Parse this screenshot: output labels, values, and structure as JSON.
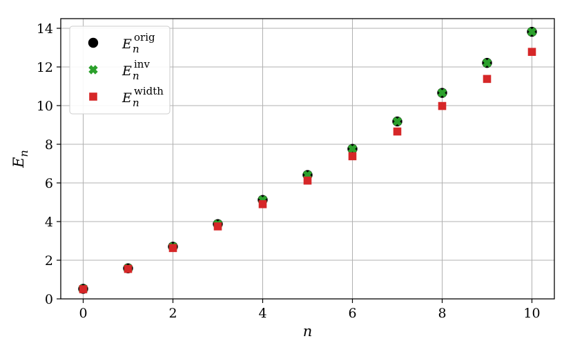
{
  "chart_data": {
    "type": "scatter",
    "xlabel": "n",
    "ylabel": "E_n",
    "xlim": [
      -0.5,
      10.5
    ],
    "ylim": [
      0,
      14.5
    ],
    "xticks": [
      0,
      2,
      4,
      6,
      8,
      10
    ],
    "yticks": [
      0,
      2,
      4,
      6,
      8,
      10,
      12,
      14
    ],
    "xtick_labels": [
      "0",
      "2",
      "4",
      "6",
      "8",
      "10"
    ],
    "ytick_labels": [
      "0",
      "2",
      "4",
      "6",
      "8",
      "10",
      "12",
      "14"
    ],
    "grid": true,
    "legend_position": "top-left",
    "series": [
      {
        "name": "E_n^orig",
        "marker": "circle",
        "color": "#000000",
        "x": [
          0,
          1,
          2,
          3,
          4,
          5,
          6,
          7,
          8,
          9,
          10
        ],
        "y": [
          0.52,
          1.58,
          2.7,
          3.87,
          5.12,
          6.41,
          7.76,
          9.18,
          10.66,
          12.21,
          13.82
        ]
      },
      {
        "name": "E_n^inv",
        "marker": "x",
        "color": "#2ca02c",
        "x": [
          0,
          1,
          2,
          3,
          4,
          5,
          6,
          7,
          8,
          9,
          10
        ],
        "y": [
          0.52,
          1.58,
          2.7,
          3.87,
          5.12,
          6.41,
          7.76,
          9.18,
          10.66,
          12.21,
          13.82
        ]
      },
      {
        "name": "E_n^width",
        "marker": "square",
        "color": "#d62728",
        "x": [
          0,
          1,
          2,
          3,
          4,
          5,
          6,
          7,
          8,
          9,
          10
        ],
        "y": [
          0.5,
          1.55,
          2.63,
          3.75,
          4.9,
          6.12,
          7.38,
          8.66,
          9.98,
          11.38,
          12.78
        ]
      }
    ],
    "legend": [
      {
        "base": "E",
        "sub": "n",
        "sup": "orig"
      },
      {
        "base": "E",
        "sub": "n",
        "sup": "inv"
      },
      {
        "base": "E",
        "sub": "n",
        "sup": "width"
      }
    ]
  }
}
